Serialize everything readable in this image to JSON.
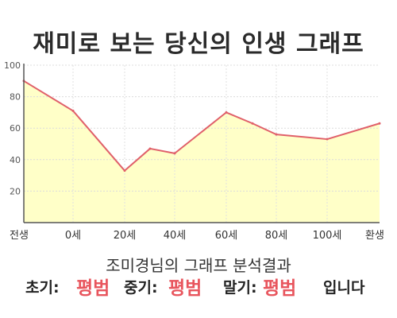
{
  "title": "재미로 보는 당신의 인생 그래프",
  "subtitle": "조미경님의 그래프 분석결과",
  "result": {
    "early_label": "초기:",
    "early_value": "평범",
    "mid_label": "중기:",
    "mid_value": "평범",
    "late_label": "말기:",
    "late_value": "평범",
    "suffix": "입니다"
  },
  "colors": {
    "line": "#e0606a",
    "fill": "#ffffc8",
    "accent": "#e8555d"
  },
  "chart_data": {
    "type": "area",
    "x_labels": [
      "전생",
      "0세",
      "20세",
      "40세",
      "60세",
      "80세",
      "100세",
      "환생"
    ],
    "x": [
      "전생",
      "0세",
      "20세",
      "30세",
      "40세",
      "60세",
      "70세",
      "80세",
      "100세",
      "환생"
    ],
    "values": [
      90,
      71,
      33,
      47,
      44,
      70,
      63,
      56,
      53,
      63
    ],
    "yticks": [
      20,
      40,
      60,
      80,
      100
    ],
    "ylim": [
      0,
      100
    ],
    "grid": true
  }
}
